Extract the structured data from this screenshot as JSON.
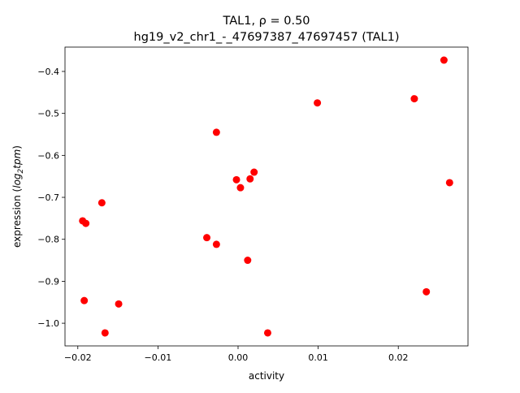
{
  "chart_data": {
    "type": "scatter",
    "title_line1": "TAL1, ρ = 0.50",
    "title_line2": "hg19_v2_chr1_-_47697387_47697457 (TAL1)",
    "xlabel": "activity",
    "ylabel_prefix": "expression (",
    "ylabel_math": "log",
    "ylabel_sub": "2",
    "ylabel_math2": "tpm",
    "ylabel_suffix": ")",
    "xlim": [
      -0.0216,
      0.0287
    ],
    "ylim": [
      -1.054,
      -0.342
    ],
    "xticks": [
      -0.02,
      -0.01,
      0.0,
      0.01,
      0.02
    ],
    "xtick_labels": [
      "−0.02",
      "−0.01",
      "0.00",
      "0.01",
      "0.02"
    ],
    "yticks": [
      -0.4,
      -0.5,
      -0.6,
      -0.7,
      -0.8,
      -0.9,
      -1.0
    ],
    "ytick_labels": [
      "−0.4",
      "−0.5",
      "−0.6",
      "−0.7",
      "−0.8",
      "−0.9",
      "−1.0"
    ],
    "marker_color": "#ff0000",
    "points": [
      {
        "x": 0.0257,
        "y": -0.373
      },
      {
        "x": 0.022,
        "y": -0.465
      },
      {
        "x": 0.0099,
        "y": -0.475
      },
      {
        "x": -0.0027,
        "y": -0.545
      },
      {
        "x": -0.0002,
        "y": -0.658
      },
      {
        "x": 0.0003,
        "y": -0.677
      },
      {
        "x": 0.0015,
        "y": -0.656
      },
      {
        "x": 0.002,
        "y": -0.64
      },
      {
        "x": 0.0264,
        "y": -0.665
      },
      {
        "x": -0.017,
        "y": -0.713
      },
      {
        "x": -0.0194,
        "y": -0.756
      },
      {
        "x": -0.019,
        "y": -0.762
      },
      {
        "x": -0.0039,
        "y": -0.796
      },
      {
        "x": -0.0027,
        "y": -0.812
      },
      {
        "x": 0.0012,
        "y": -0.85
      },
      {
        "x": -0.0192,
        "y": -0.946
      },
      {
        "x": -0.0149,
        "y": -0.954
      },
      {
        "x": 0.0235,
        "y": -0.925
      },
      {
        "x": -0.0166,
        "y": -1.023
      },
      {
        "x": 0.0037,
        "y": -1.023
      }
    ]
  }
}
